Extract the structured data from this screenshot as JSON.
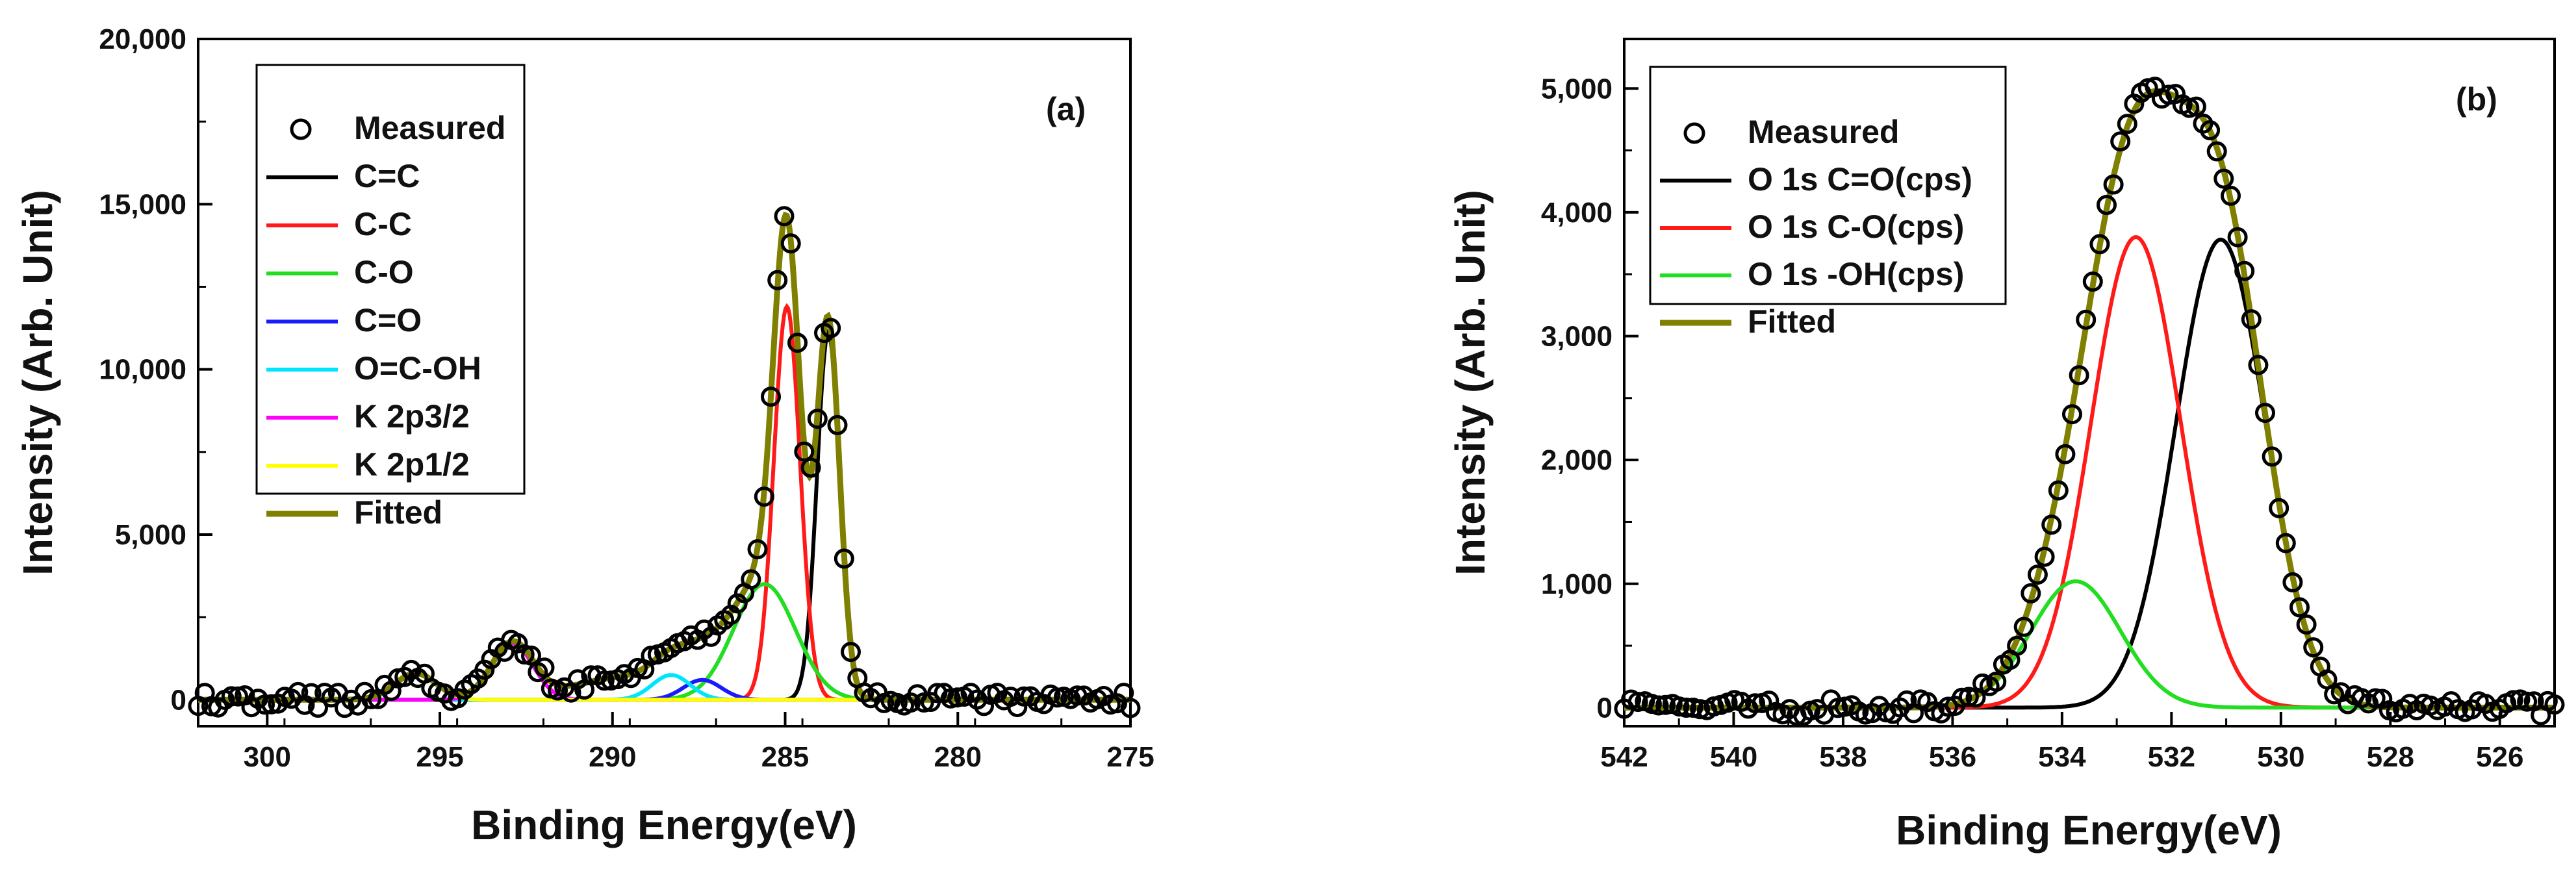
{
  "chart_data": [
    {
      "type": "line",
      "panel_label": "(a)",
      "xlabel": "Binding Energy(eV)",
      "ylabel": "Intensity (Arb. Unit)",
      "xlim": [
        302,
        275
      ],
      "ylim": [
        -800,
        20000
      ],
      "xticks": [
        300,
        295,
        290,
        285,
        280,
        275
      ],
      "xtick_labels": [
        "300",
        "295",
        "290",
        "285",
        "280",
        "275"
      ],
      "yticks": [
        0,
        5000,
        10000,
        15000,
        20000
      ],
      "ytick_labels": [
        "0",
        "5,000",
        "10,000",
        "15,000",
        "20,000"
      ],
      "series": [
        {
          "name": "Measured",
          "color": "#000000",
          "style": "marker"
        },
        {
          "name": "C=C",
          "color": "#000000",
          "peak": {
            "center": 283.75,
            "amplitude": 11100,
            "sigma": 0.33
          }
        },
        {
          "name": "C-C",
          "color": "#ff1a1a",
          "peak": {
            "center": 284.95,
            "amplitude": 11900,
            "sigma": 0.38
          }
        },
        {
          "name": "C-O",
          "color": "#22dd22",
          "peak": {
            "center": 285.6,
            "amplitude": 3500,
            "sigma": 0.9
          }
        },
        {
          "name": "C=O",
          "color": "#1a1aff",
          "peak": {
            "center": 287.4,
            "amplitude": 600,
            "sigma": 0.55
          }
        },
        {
          "name": "O=C-OH",
          "color": "#00e5ff",
          "peak": {
            "center": 288.3,
            "amplitude": 750,
            "sigma": 0.55
          }
        },
        {
          "name": "K 2p3/2",
          "color": "#ff00ff",
          "peak": {
            "center": 292.9,
            "amplitude": 1700,
            "sigma": 0.6
          }
        },
        {
          "name": "K 2p1/2",
          "color": "#ffff00",
          "peak": {
            "center": 295.7,
            "amplitude": 800,
            "sigma": 0.6
          }
        },
        {
          "name": "Fitted",
          "color": "#7f7f00",
          "style": "sum"
        }
      ],
      "extra_background": [
        {
          "center": 289.5,
          "amplitude": 700,
          "sigma": 1.6
        },
        {
          "center": 286.9,
          "amplitude": 400,
          "sigma": 0.8
        }
      ]
    },
    {
      "type": "line",
      "panel_label": "(b)",
      "xlabel": "Binding Energy(eV)",
      "ylabel": "Intensity (Arb. Unit)",
      "xlim": [
        542,
        525
      ],
      "ylim": [
        -150,
        5400
      ],
      "xticks": [
        542,
        540,
        538,
        536,
        534,
        532,
        530,
        528,
        526
      ],
      "xtick_labels": [
        "542",
        "540",
        "538",
        "536",
        "534",
        "532",
        "530",
        "528",
        "526"
      ],
      "yticks": [
        0,
        1000,
        2000,
        3000,
        4000,
        5000
      ],
      "ytick_labels": [
        "0",
        "1,000",
        "2,000",
        "3,000",
        "4,000",
        "5,000"
      ],
      "series": [
        {
          "name": "Measured",
          "color": "#000000",
          "style": "marker"
        },
        {
          "name": "O 1s C=O(cps)",
          "color": "#000000",
          "peak": {
            "center": 531.1,
            "amplitude": 3780,
            "sigma": 0.82
          }
        },
        {
          "name": "O 1s C-O(cps)",
          "color": "#ff1a1a",
          "peak": {
            "center": 532.65,
            "amplitude": 3800,
            "sigma": 0.82
          }
        },
        {
          "name": "O 1s -OH(cps)",
          "color": "#22dd22",
          "peak": {
            "center": 533.75,
            "amplitude": 1020,
            "sigma": 0.82
          }
        },
        {
          "name": "Fitted",
          "color": "#7f7f00",
          "style": "sum"
        }
      ],
      "extra_background": []
    }
  ]
}
